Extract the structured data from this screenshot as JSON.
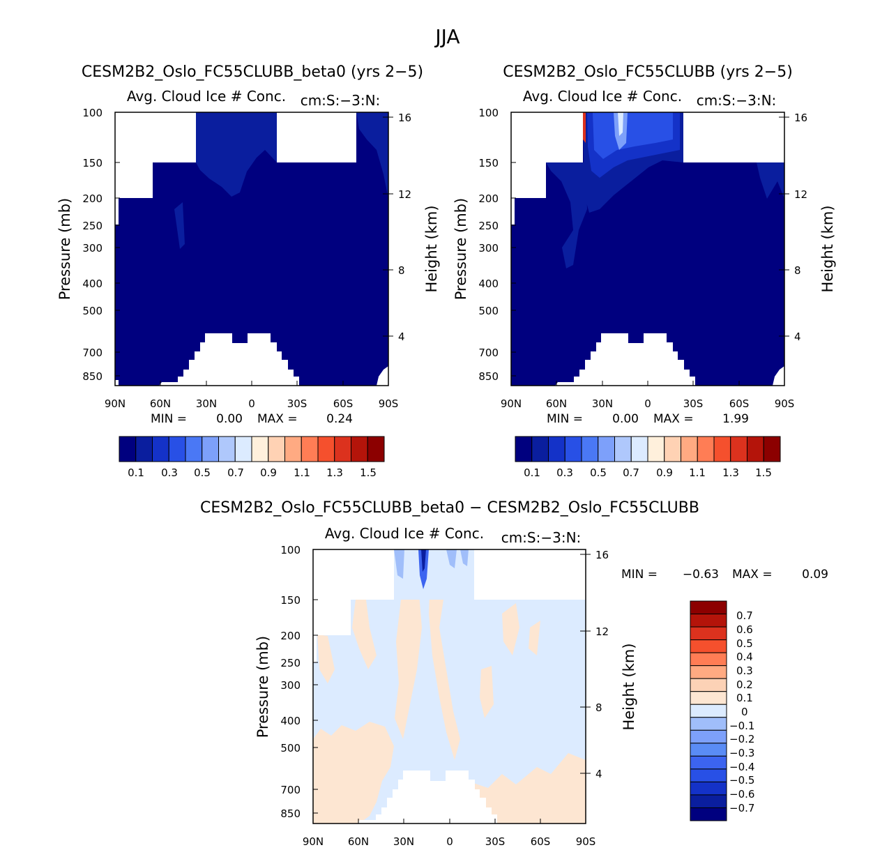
{
  "page": {
    "title": "JJA"
  },
  "colors": {
    "field_ramp": [
      "#00007f",
      "#0a1e9e",
      "#1432c8",
      "#2850e6",
      "#4a78f5",
      "#7da0fa",
      "#afc8fc",
      "#dcebff",
      "#fff0dc",
      "#ffd2b4",
      "#ffaa82",
      "#ff7d55",
      "#f5502d",
      "#dc321e",
      "#b4140a",
      "#8c0000"
    ],
    "diff_ramp": [
      "#00007f",
      "#0a1e9e",
      "#1432c8",
      "#2850e6",
      "#3c64f0",
      "#5a8cf5",
      "#7da0fa",
      "#a0befa",
      "#dcebff",
      "#fde6d2",
      "#fcd2b6",
      "#ffaa82",
      "#ff7d55",
      "#f5502d",
      "#dc321e",
      "#b4140a",
      "#8c0000"
    ]
  },
  "chart_data": [
    {
      "type": "heatmap",
      "panel": "top-left",
      "title": "CESM2B2_Oslo_FC55CLUBB_beta0 (yrs 2−5)",
      "subtitle": "Avg. Cloud Ice # Conc.",
      "units": "cm:S:−3:N:",
      "xlabel": "",
      "ylabel": "Pressure (mb)",
      "y2label": "Height (km)",
      "x_ticks": [
        "90N",
        "60N",
        "30N",
        "0",
        "30S",
        "60S",
        "90S"
      ],
      "y_ticks": [
        "100",
        "150",
        "200",
        "250",
        "300",
        "400",
        "500",
        "700",
        "850"
      ],
      "y2_ticks": [
        "16",
        "12",
        "8",
        "4"
      ],
      "xlim": [
        90,
        -90
      ],
      "ylim_mb": [
        100,
        900
      ],
      "min_label": "MIN =",
      "min_value": "0.00",
      "max_label": "MAX =",
      "max_value": "0.24",
      "colorbar_labels": [
        "0.1",
        "0.3",
        "0.5",
        "0.7",
        "0.9",
        "1.1",
        "1.3",
        "1.5"
      ]
    },
    {
      "type": "heatmap",
      "panel": "top-right",
      "title": "CESM2B2_Oslo_FC55CLUBB (yrs 2−5)",
      "subtitle": "Avg. Cloud Ice # Conc.",
      "units": "cm:S:−3:N:",
      "xlabel": "",
      "ylabel": "Pressure (mb)",
      "y2label": "Height (km)",
      "x_ticks": [
        "90N",
        "60N",
        "30N",
        "0",
        "30S",
        "60S",
        "90S"
      ],
      "y_ticks": [
        "100",
        "150",
        "200",
        "250",
        "300",
        "400",
        "500",
        "700",
        "850"
      ],
      "y2_ticks": [
        "16",
        "12",
        "8",
        "4"
      ],
      "xlim": [
        90,
        -90
      ],
      "ylim_mb": [
        100,
        900
      ],
      "min_label": "MIN =",
      "min_value": "0.00",
      "max_label": "MAX =",
      "max_value": "1.99",
      "colorbar_labels": [
        "0.1",
        "0.3",
        "0.5",
        "0.7",
        "0.9",
        "1.1",
        "1.3",
        "1.5"
      ]
    },
    {
      "type": "heatmap",
      "panel": "bottom",
      "title": "CESM2B2_Oslo_FC55CLUBB_beta0 − CESM2B2_Oslo_FC55CLUBB",
      "subtitle": "Avg. Cloud Ice # Conc.",
      "units": "cm:S:−3:N:",
      "xlabel": "",
      "ylabel": "Pressure (mb)",
      "y2label": "Height (km)",
      "x_ticks": [
        "90N",
        "60N",
        "30N",
        "0",
        "30S",
        "60S",
        "90S"
      ],
      "y_ticks": [
        "100",
        "150",
        "200",
        "250",
        "300",
        "400",
        "500",
        "700",
        "850"
      ],
      "y2_ticks": [
        "16",
        "12",
        "8",
        "4"
      ],
      "xlim": [
        90,
        -90
      ],
      "ylim_mb": [
        100,
        900
      ],
      "min_label": "MIN =",
      "min_value": "−0.63",
      "max_label": "MAX =",
      "max_value": "0.09",
      "colorbar_labels": [
        "0.7",
        "0.6",
        "0.5",
        "0.4",
        "0.3",
        "0.2",
        "0.1",
        "0",
        "−0.1",
        "−0.2",
        "−0.3",
        "−0.4",
        "−0.5",
        "−0.6",
        "−0.7"
      ]
    }
  ]
}
